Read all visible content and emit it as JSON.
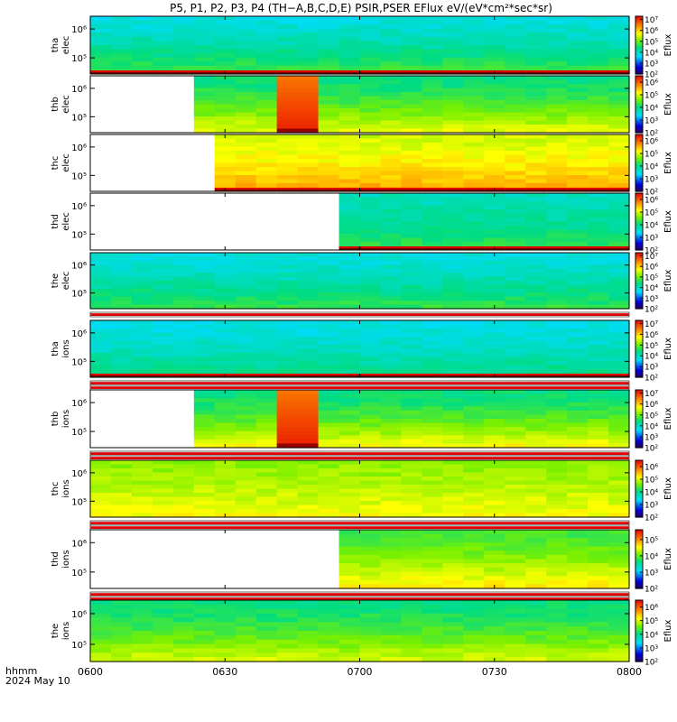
{
  "title": "P5, P1, P2, P3, P4 (TH−A,B,C,D,E) PSIR,PSER EFlux eV/(eV*cm²*sec*sr)",
  "footer": {
    "label": "hhmm",
    "date": "2024 May 10"
  },
  "colorbar_label": "Eflux",
  "chart_data": {
    "type": "heatmap",
    "title": "P5, P1, P2, P3, P4 (TH−A,B,C,D,E) PSIR,PSER EFlux eV/(eV*cm²*sec*sr)",
    "x_ticks": [
      "0600",
      "0630",
      "0700",
      "0730",
      "0800"
    ],
    "x_range_hhmm": [
      "06:00",
      "08:00"
    ],
    "colorscale": "rainbow",
    "panels": [
      {
        "label": [
          "tha",
          "elec"
        ],
        "y_ticks": [
          "10⁶",
          "10⁵"
        ],
        "cbar_ticks": [
          "10⁷",
          "10⁶",
          "10⁵",
          "10⁴",
          "10³",
          "10²"
        ],
        "cbar_exp_range": [
          2,
          7.3
        ],
        "start_min": 0,
        "top": 0.34,
        "bottom": 0.52,
        "spike": null,
        "bottom_band": true,
        "bands_after": 0
      },
      {
        "label": [
          "thb",
          "elec"
        ],
        "y_ticks": [
          "10⁶",
          "10⁵"
        ],
        "cbar_ticks": [
          "10⁶",
          "10⁵",
          "10⁴",
          "10³",
          "10²"
        ],
        "cbar_exp_range": [
          2,
          6.5
        ],
        "start_min": 21,
        "top": 0.45,
        "bottom": 0.68,
        "spike": [
          40,
          49
        ],
        "bottom_band": false,
        "bands_after": 0
      },
      {
        "label": [
          "thc",
          "elec"
        ],
        "y_ticks": [
          "10⁶",
          "10⁵"
        ],
        "cbar_ticks": [
          "10⁶",
          "10⁵",
          "10⁴",
          "10³",
          "10²"
        ],
        "cbar_exp_range": [
          2,
          6.5
        ],
        "start_min": 30,
        "top": 0.66,
        "bottom": 0.8,
        "spike": null,
        "bottom_band": true,
        "bands_after": 0
      },
      {
        "label": [
          "thd",
          "elec"
        ],
        "y_ticks": [
          "10⁶",
          "10⁵"
        ],
        "cbar_ticks": [
          "10⁶",
          "10⁵",
          "10⁴",
          "10³",
          "10²"
        ],
        "cbar_exp_range": [
          2,
          6.5
        ],
        "start_min": 57,
        "top": 0.38,
        "bottom": 0.5,
        "spike": null,
        "bottom_band": true,
        "bands_after": 0
      },
      {
        "label": [
          "the",
          "elec"
        ],
        "y_ticks": [
          "10⁶",
          "10⁵"
        ],
        "cbar_ticks": [
          "10⁷",
          "10⁶",
          "10⁵",
          "10⁴",
          "10³",
          "10²"
        ],
        "cbar_exp_range": [
          2,
          7.3
        ],
        "start_min": 0,
        "top": 0.34,
        "bottom": 0.5,
        "spike": null,
        "bottom_band": false,
        "bands_after": 1
      },
      {
        "label": [
          "tha",
          "ions"
        ],
        "y_ticks": [
          "10⁶",
          "10⁵"
        ],
        "cbar_ticks": [
          "10⁷",
          "10⁶",
          "10⁵",
          "10⁴",
          "10³",
          "10²"
        ],
        "cbar_exp_range": [
          2,
          7.3
        ],
        "start_min": 0,
        "top": 0.33,
        "bottom": 0.45,
        "spike": null,
        "bottom_band": true,
        "bands_after": 2
      },
      {
        "label": [
          "thb",
          "ions"
        ],
        "y_ticks": [
          "10⁶",
          "10⁵"
        ],
        "cbar_ticks": [
          "10⁷",
          "10⁶",
          "10⁵",
          "10⁴",
          "10³",
          "10²"
        ],
        "cbar_exp_range": [
          2,
          7.3
        ],
        "start_min": 21,
        "top": 0.45,
        "bottom": 0.7,
        "spike": [
          40,
          49
        ],
        "bottom_band": false,
        "bands_after": 2
      },
      {
        "label": [
          "thc",
          "ions"
        ],
        "y_ticks": [
          "10⁶",
          "10⁵"
        ],
        "cbar_ticks": [
          "10⁶",
          "10⁵",
          "10⁴",
          "10³",
          "10²"
        ],
        "cbar_exp_range": [
          2,
          6.5
        ],
        "start_min": 0,
        "top": 0.6,
        "bottom": 0.7,
        "spike": null,
        "bottom_band": false,
        "bands_after": 2
      },
      {
        "label": [
          "thd",
          "ions"
        ],
        "y_ticks": [
          "10⁶",
          "10⁵"
        ],
        "cbar_ticks": [
          "10⁵",
          "10⁴",
          "10³",
          "10²"
        ],
        "cbar_exp_range": [
          2,
          5.6
        ],
        "start_min": 57,
        "top": 0.52,
        "bottom": 0.72,
        "spike": null,
        "bottom_band": false,
        "bands_after": 2
      },
      {
        "label": [
          "the",
          "ions"
        ],
        "y_ticks": [
          "10⁶",
          "10⁵"
        ],
        "cbar_ticks": [
          "10⁶",
          "10⁵",
          "10⁴",
          "10³",
          "10²"
        ],
        "cbar_exp_range": [
          2,
          6.5
        ],
        "start_min": 0,
        "top": 0.45,
        "bottom": 0.66,
        "spike": null,
        "bottom_band": false,
        "bands_after": 0
      }
    ]
  }
}
